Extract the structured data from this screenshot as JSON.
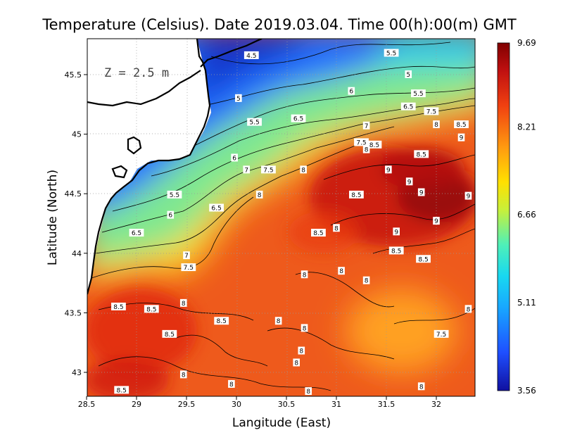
{
  "chart_data": {
    "type": "heatmap",
    "title": "Temperature (Celsius). Date 2019.03.04. Time 00(h):00(m)  GMT",
    "xlabel": "Langitude (East)",
    "ylabel": "Latitude (North)",
    "xlim": [
      28.5,
      32.4
    ],
    "ylim": [
      42.8,
      45.8
    ],
    "x_ticks": [
      "28.5",
      "29",
      "29.5",
      "30",
      "30.5",
      "31",
      "31.5",
      "32"
    ],
    "y_ticks": [
      "43",
      "43.5",
      "44",
      "44.5",
      "45",
      "45.5"
    ],
    "colorbar": {
      "range": [
        3.56,
        9.69
      ],
      "tick_labels": [
        "9.69",
        "8.21",
        "6.66",
        "5.11",
        "3.56"
      ],
      "colors": [
        "#1010a0",
        "#1f4fff",
        "#18c8ff",
        "#4ff0b8",
        "#c8f03a",
        "#ffe000",
        "#ff9a10",
        "#f04010",
        "#c01010",
        "#800000"
      ]
    },
    "annotation": "Z  =  2.5  m",
    "grid": true,
    "contour_labels": [
      {
        "text": "4.5",
        "lon": 30.15,
        "lat": 45.66
      },
      {
        "text": "5.5",
        "lon": 31.55,
        "lat": 45.68
      },
      {
        "text": "5",
        "lon": 31.72,
        "lat": 45.5
      },
      {
        "text": "5",
        "lon": 30.02,
        "lat": 45.3
      },
      {
        "text": "6",
        "lon": 31.15,
        "lat": 45.36
      },
      {
        "text": "5.5",
        "lon": 31.82,
        "lat": 45.34
      },
      {
        "text": "6.5",
        "lon": 31.72,
        "lat": 45.23
      },
      {
        "text": "7.5",
        "lon": 31.95,
        "lat": 45.19
      },
      {
        "text": "6.5",
        "lon": 30.62,
        "lat": 45.13
      },
      {
        "text": "5.5",
        "lon": 30.18,
        "lat": 45.1
      },
      {
        "text": "7",
        "lon": 31.3,
        "lat": 45.07
      },
      {
        "text": "8",
        "lon": 32.0,
        "lat": 45.08
      },
      {
        "text": "8.5",
        "lon": 32.25,
        "lat": 45.08
      },
      {
        "text": "9",
        "lon": 32.25,
        "lat": 44.97
      },
      {
        "text": "7.5",
        "lon": 31.25,
        "lat": 44.93
      },
      {
        "text": "8.5",
        "lon": 31.38,
        "lat": 44.91
      },
      {
        "text": "8",
        "lon": 31.3,
        "lat": 44.87
      },
      {
        "text": "8.5",
        "lon": 31.85,
        "lat": 44.83
      },
      {
        "text": "6",
        "lon": 29.98,
        "lat": 44.8
      },
      {
        "text": "7",
        "lon": 30.1,
        "lat": 44.7
      },
      {
        "text": "7.5",
        "lon": 30.32,
        "lat": 44.7
      },
      {
        "text": "8",
        "lon": 30.67,
        "lat": 44.7
      },
      {
        "text": "9",
        "lon": 31.52,
        "lat": 44.7
      },
      {
        "text": "9",
        "lon": 31.73,
        "lat": 44.6
      },
      {
        "text": "9",
        "lon": 31.85,
        "lat": 44.51
      },
      {
        "text": "9",
        "lon": 32.32,
        "lat": 44.48
      },
      {
        "text": "8.5",
        "lon": 31.2,
        "lat": 44.49
      },
      {
        "text": "8",
        "lon": 30.23,
        "lat": 44.49
      },
      {
        "text": "5.5",
        "lon": 29.38,
        "lat": 44.49
      },
      {
        "text": "6.5",
        "lon": 29.8,
        "lat": 44.38
      },
      {
        "text": "6",
        "lon": 29.34,
        "lat": 44.32
      },
      {
        "text": "9",
        "lon": 32.0,
        "lat": 44.27
      },
      {
        "text": "6.5",
        "lon": 29.0,
        "lat": 44.17
      },
      {
        "text": "8",
        "lon": 31.0,
        "lat": 44.21
      },
      {
        "text": "8.5",
        "lon": 30.82,
        "lat": 44.17
      },
      {
        "text": "9",
        "lon": 31.6,
        "lat": 44.18
      },
      {
        "text": "8.5",
        "lon": 31.6,
        "lat": 44.02
      },
      {
        "text": "8.5",
        "lon": 31.87,
        "lat": 43.95
      },
      {
        "text": "7",
        "lon": 29.5,
        "lat": 43.98
      },
      {
        "text": "7.5",
        "lon": 29.52,
        "lat": 43.88
      },
      {
        "text": "8",
        "lon": 31.05,
        "lat": 43.85
      },
      {
        "text": "8",
        "lon": 30.68,
        "lat": 43.82
      },
      {
        "text": "8",
        "lon": 31.3,
        "lat": 43.77
      },
      {
        "text": "8",
        "lon": 29.47,
        "lat": 43.58
      },
      {
        "text": "8.5",
        "lon": 28.82,
        "lat": 43.55
      },
      {
        "text": "8.5",
        "lon": 29.15,
        "lat": 43.53
      },
      {
        "text": "8",
        "lon": 32.32,
        "lat": 43.53
      },
      {
        "text": "8.5",
        "lon": 29.33,
        "lat": 43.32
      },
      {
        "text": "8.5",
        "lon": 29.85,
        "lat": 43.43
      },
      {
        "text": "8",
        "lon": 30.42,
        "lat": 43.43
      },
      {
        "text": "8",
        "lon": 30.68,
        "lat": 43.37
      },
      {
        "text": "7.5",
        "lon": 32.05,
        "lat": 43.32
      },
      {
        "text": "8",
        "lon": 30.65,
        "lat": 43.18
      },
      {
        "text": "8",
        "lon": 30.6,
        "lat": 43.08
      },
      {
        "text": "8",
        "lon": 29.47,
        "lat": 42.98
      },
      {
        "text": "8",
        "lon": 29.95,
        "lat": 42.9
      },
      {
        "text": "8",
        "lon": 30.72,
        "lat": 42.84
      },
      {
        "text": "8",
        "lon": 31.85,
        "lat": 42.88
      },
      {
        "text": "8.5",
        "lon": 28.85,
        "lat": 42.85
      }
    ]
  }
}
